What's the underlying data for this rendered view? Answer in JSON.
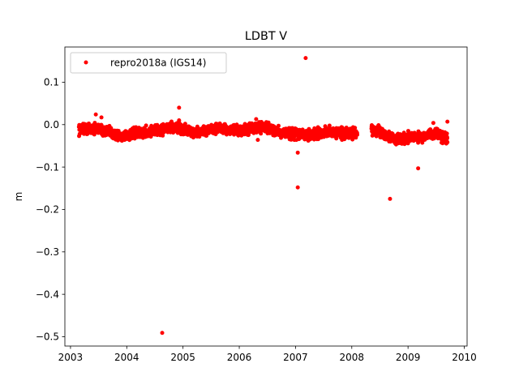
{
  "chart_data": {
    "type": "scatter",
    "title": "LDBT V",
    "xlabel": "",
    "ylabel": "m",
    "xlim": [
      2002.9,
      2010.05
    ],
    "ylim": [
      -0.522,
      0.183
    ],
    "xticks": [
      2003,
      2004,
      2005,
      2006,
      2007,
      2008,
      2009,
      2010
    ],
    "xtick_labels": [
      "2003",
      "2004",
      "2005",
      "2006",
      "2007",
      "2008",
      "2009",
      "2010"
    ],
    "yticks": [
      0.1,
      0.0,
      -0.1,
      -0.2,
      -0.3,
      -0.4,
      -0.5
    ],
    "ytick_labels": [
      "0.1",
      "0.0",
      "−0.1",
      "−0.2",
      "−0.3",
      "−0.4",
      "−0.5"
    ],
    "grid": false,
    "legend": {
      "position": "upper-left",
      "entries": [
        "repro2018a (IGS14)"
      ]
    },
    "series": [
      {
        "name": "repro2018a (IGS14)",
        "color": "#ff0000",
        "marker": "circle",
        "segments": [
          {
            "x_start": 2003.15,
            "x_end": 2008.1,
            "knots": [
              [
                2003.15,
                -0.01
              ],
              [
                2003.5,
                -0.01
              ],
              [
                2003.9,
                -0.028
              ],
              [
                2004.2,
                -0.02
              ],
              [
                2004.6,
                -0.012
              ],
              [
                2004.9,
                -0.005
              ],
              [
                2005.2,
                -0.02
              ],
              [
                2005.6,
                -0.008
              ],
              [
                2006.0,
                -0.015
              ],
              [
                2006.4,
                -0.005
              ],
              [
                2006.8,
                -0.02
              ],
              [
                2007.2,
                -0.025
              ],
              [
                2007.6,
                -0.018
              ],
              [
                2008.1,
                -0.02
              ]
            ]
          },
          {
            "x_start": 2008.35,
            "x_end": 2009.7,
            "knots": [
              [
                2008.35,
                -0.01
              ],
              [
                2008.6,
                -0.025
              ],
              [
                2008.8,
                -0.035
              ],
              [
                2009.0,
                -0.03
              ],
              [
                2009.3,
                -0.028
              ],
              [
                2009.5,
                -0.02
              ],
              [
                2009.7,
                -0.035
              ]
            ]
          }
        ],
        "outliers": [
          {
            "x": 2003.45,
            "y": 0.024
          },
          {
            "x": 2003.55,
            "y": 0.017
          },
          {
            "x": 2004.63,
            "y": -0.491
          },
          {
            "x": 2004.93,
            "y": 0.04
          },
          {
            "x": 2004.93,
            "y": 0.01
          },
          {
            "x": 2006.3,
            "y": 0.013
          },
          {
            "x": 2006.33,
            "y": -0.036
          },
          {
            "x": 2007.04,
            "y": -0.066
          },
          {
            "x": 2007.04,
            "y": -0.148
          },
          {
            "x": 2007.18,
            "y": 0.157
          },
          {
            "x": 2008.68,
            "y": -0.175
          },
          {
            "x": 2009.18,
            "y": -0.103
          },
          {
            "x": 2009.45,
            "y": 0.004
          },
          {
            "x": 2009.7,
            "y": 0.007
          }
        ]
      }
    ]
  }
}
